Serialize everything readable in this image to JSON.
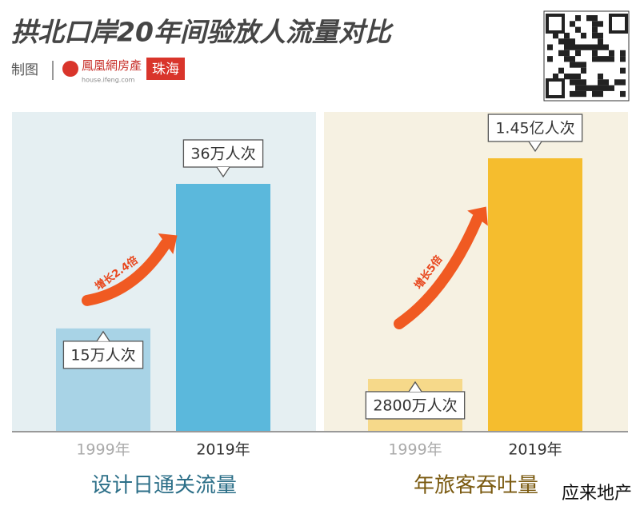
{
  "title": "拱北口岸20年间验放人流量对比",
  "credit": "制图",
  "brand": "鳳凰網房產",
  "brand_url": "house.ifeng.com",
  "brand_city": "珠海",
  "watermark": "应来地产",
  "chart_data": [
    {
      "type": "bar",
      "title": "设计日通关流量",
      "categories": [
        "1999年",
        "2019年"
      ],
      "values": [
        15,
        36
      ],
      "value_labels": [
        "15万人次",
        "36万人次"
      ],
      "colors": [
        "#a8d3e6",
        "#5bb8dc"
      ],
      "annotation": "增长2.4倍",
      "background": "#e5eff2"
    },
    {
      "type": "bar",
      "title": "年旅客吞吐量",
      "categories": [
        "1999年",
        "2019年"
      ],
      "values": [
        2800,
        14500
      ],
      "value_labels": [
        "2800万人次",
        "1.45亿人次"
      ],
      "colors": [
        "#f6d98a",
        "#f5bd2e"
      ],
      "annotation": "增长5倍",
      "background": "#f6f1e2"
    }
  ]
}
